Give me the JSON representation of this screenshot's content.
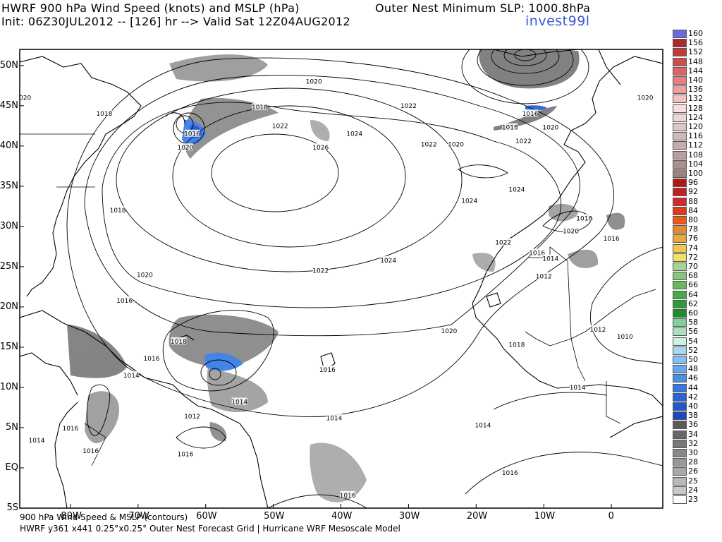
{
  "header": {
    "line1_left": "HWRF 900 hPa Wind Speed (knots) and MSLP (hPa)",
    "line1_right": "Outer Nest Minimum SLP: 1000.8hPa",
    "line2": "Init: 06Z30JUL2012 -- [126] hr --> Valid Sat 12Z04AUG2012",
    "storm_name": "invest99l"
  },
  "footer": {
    "line1": "900 hPa Wind Speed & MSLP (contours)",
    "line2": "HWRF y361 x441 0.25°x0.25° Outer Nest Forecast Grid | Hurricane WRF Mesoscale Model"
  },
  "axes": {
    "lat_labels": [
      "50N",
      "45N",
      "40N",
      "35N",
      "30N",
      "25N",
      "20N",
      "15N",
      "10N",
      "5N",
      "EQ",
      "5S"
    ],
    "lon_labels": [
      "80W",
      "70W",
      "60W",
      "50W",
      "40W",
      "30W",
      "20W",
      "10W",
      "0"
    ]
  },
  "legend": {
    "values": [
      "160",
      "156",
      "152",
      "148",
      "144",
      "140",
      "136",
      "132",
      "128",
      "124",
      "120",
      "116",
      "112",
      "108",
      "104",
      "100",
      "96",
      "92",
      "88",
      "84",
      "80",
      "78",
      "76",
      "74",
      "72",
      "70",
      "68",
      "66",
      "64",
      "62",
      "60",
      "58",
      "56",
      "54",
      "52",
      "50",
      "48",
      "46",
      "44",
      "42",
      "40",
      "38",
      "36",
      "34",
      "32",
      "30",
      "28",
      "26",
      "25",
      "24",
      "23"
    ],
    "colors": [
      "#6a6ae0",
      "#b0282e",
      "#c23a3a",
      "#d04d4d",
      "#dc6464",
      "#e67f7f",
      "#eea0a0",
      "#f4c2c2",
      "#f8dede",
      "#ead8d8",
      "#dcc8c8",
      "#d0baba",
      "#c4acac",
      "#b89e9e",
      "#ac9090",
      "#9e8080",
      "#b01616",
      "#c42020",
      "#d22a2a",
      "#e03a1e",
      "#ec5a18",
      "#e78a2a",
      "#e9a83a",
      "#f0c84a",
      "#f4e060",
      "#a6d496",
      "#86c67a",
      "#66b85e",
      "#46aa46",
      "#2e9c36",
      "#1e8e28",
      "#7ed0a0",
      "#a8e0c0",
      "#d0f0e0",
      "#a8d8f8",
      "#84c0f4",
      "#64a8ee",
      "#4a90e8",
      "#3678e0",
      "#2a64d8",
      "#2256cc",
      "#1a48c0",
      "#5a5a5a",
      "#686868",
      "#787878",
      "#888888",
      "#989898",
      "#a8a8a8",
      "#b8b8b8",
      "#c8c8c8",
      "#ffffff"
    ]
  },
  "isobar_labels": [
    {
      "text": "1020",
      "lon": -87,
      "lat": 46
    },
    {
      "text": "1018",
      "lon": -75,
      "lat": 44
    },
    {
      "text": "1018",
      "lon": -52,
      "lat": 44.8
    },
    {
      "text": "1020",
      "lon": -44,
      "lat": 48
    },
    {
      "text": "1016",
      "lon": -62,
      "lat": 41.5
    },
    {
      "text": "1020",
      "lon": -63,
      "lat": 39.8
    },
    {
      "text": "1022",
      "lon": -49,
      "lat": 42.5
    },
    {
      "text": "1024",
      "lon": -38,
      "lat": 41.5
    },
    {
      "text": "1026",
      "lon": -43,
      "lat": 39.8
    },
    {
      "text": "1022",
      "lon": -30,
      "lat": 45
    },
    {
      "text": "1022",
      "lon": -27,
      "lat": 40.2
    },
    {
      "text": "1020",
      "lon": -23,
      "lat": 40.2
    },
    {
      "text": "1016",
      "lon": -12,
      "lat": 44
    },
    {
      "text": "1018",
      "lon": -15,
      "lat": 42.3
    },
    {
      "text": "1020",
      "lon": -9,
      "lat": 42.3
    },
    {
      "text": "1022",
      "lon": -13,
      "lat": 40.6
    },
    {
      "text": "1024",
      "lon": -14,
      "lat": 34.6
    },
    {
      "text": "1024",
      "lon": -21,
      "lat": 33.2
    },
    {
      "text": "1020",
      "lon": 5,
      "lat": 46
    },
    {
      "text": "1018",
      "lon": -73,
      "lat": 32
    },
    {
      "text": "1018",
      "lon": -4,
      "lat": 31
    },
    {
      "text": "1020",
      "lon": -6,
      "lat": 29.4
    },
    {
      "text": "1016",
      "lon": 0,
      "lat": 28.5
    },
    {
      "text": "1022",
      "lon": -16,
      "lat": 28
    },
    {
      "text": "1016",
      "lon": -11,
      "lat": 26.7
    },
    {
      "text": "1014",
      "lon": -9,
      "lat": 26
    },
    {
      "text": "1012",
      "lon": -10,
      "lat": 23.8
    },
    {
      "text": "1024",
      "lon": -33,
      "lat": 25.8
    },
    {
      "text": "1022",
      "lon": -43,
      "lat": 24.5
    },
    {
      "text": "1020",
      "lon": -69,
      "lat": 24
    },
    {
      "text": "1016",
      "lon": -72,
      "lat": 20.8
    },
    {
      "text": "1020",
      "lon": -24,
      "lat": 17
    },
    {
      "text": "1018",
      "lon": -14,
      "lat": 15.3
    },
    {
      "text": "1012",
      "lon": -2,
      "lat": 17.2
    },
    {
      "text": "1010",
      "lon": 2,
      "lat": 16.3
    },
    {
      "text": "1018",
      "lon": -64,
      "lat": 15.7
    },
    {
      "text": "1016",
      "lon": -68,
      "lat": 13.6
    },
    {
      "text": "1016",
      "lon": -42,
      "lat": 12.2
    },
    {
      "text": "1014",
      "lon": -71,
      "lat": 11.5
    },
    {
      "text": "1014",
      "lon": -55,
      "lat": 8.2
    },
    {
      "text": "1014",
      "lon": -5,
      "lat": 10
    },
    {
      "text": "1012",
      "lon": -62,
      "lat": 6.4
    },
    {
      "text": "1014",
      "lon": -41,
      "lat": 6.2
    },
    {
      "text": "1014",
      "lon": -19,
      "lat": 5.3
    },
    {
      "text": "1016",
      "lon": -80,
      "lat": 4.9
    },
    {
      "text": "1014",
      "lon": -85,
      "lat": 3.4
    },
    {
      "text": "1016",
      "lon": -77,
      "lat": 2.1
    },
    {
      "text": "1016",
      "lon": -63,
      "lat": 1.7
    },
    {
      "text": "1016",
      "lon": -15,
      "lat": -0.6
    },
    {
      "text": "1016",
      "lon": -39,
      "lat": -3.4
    }
  ]
}
